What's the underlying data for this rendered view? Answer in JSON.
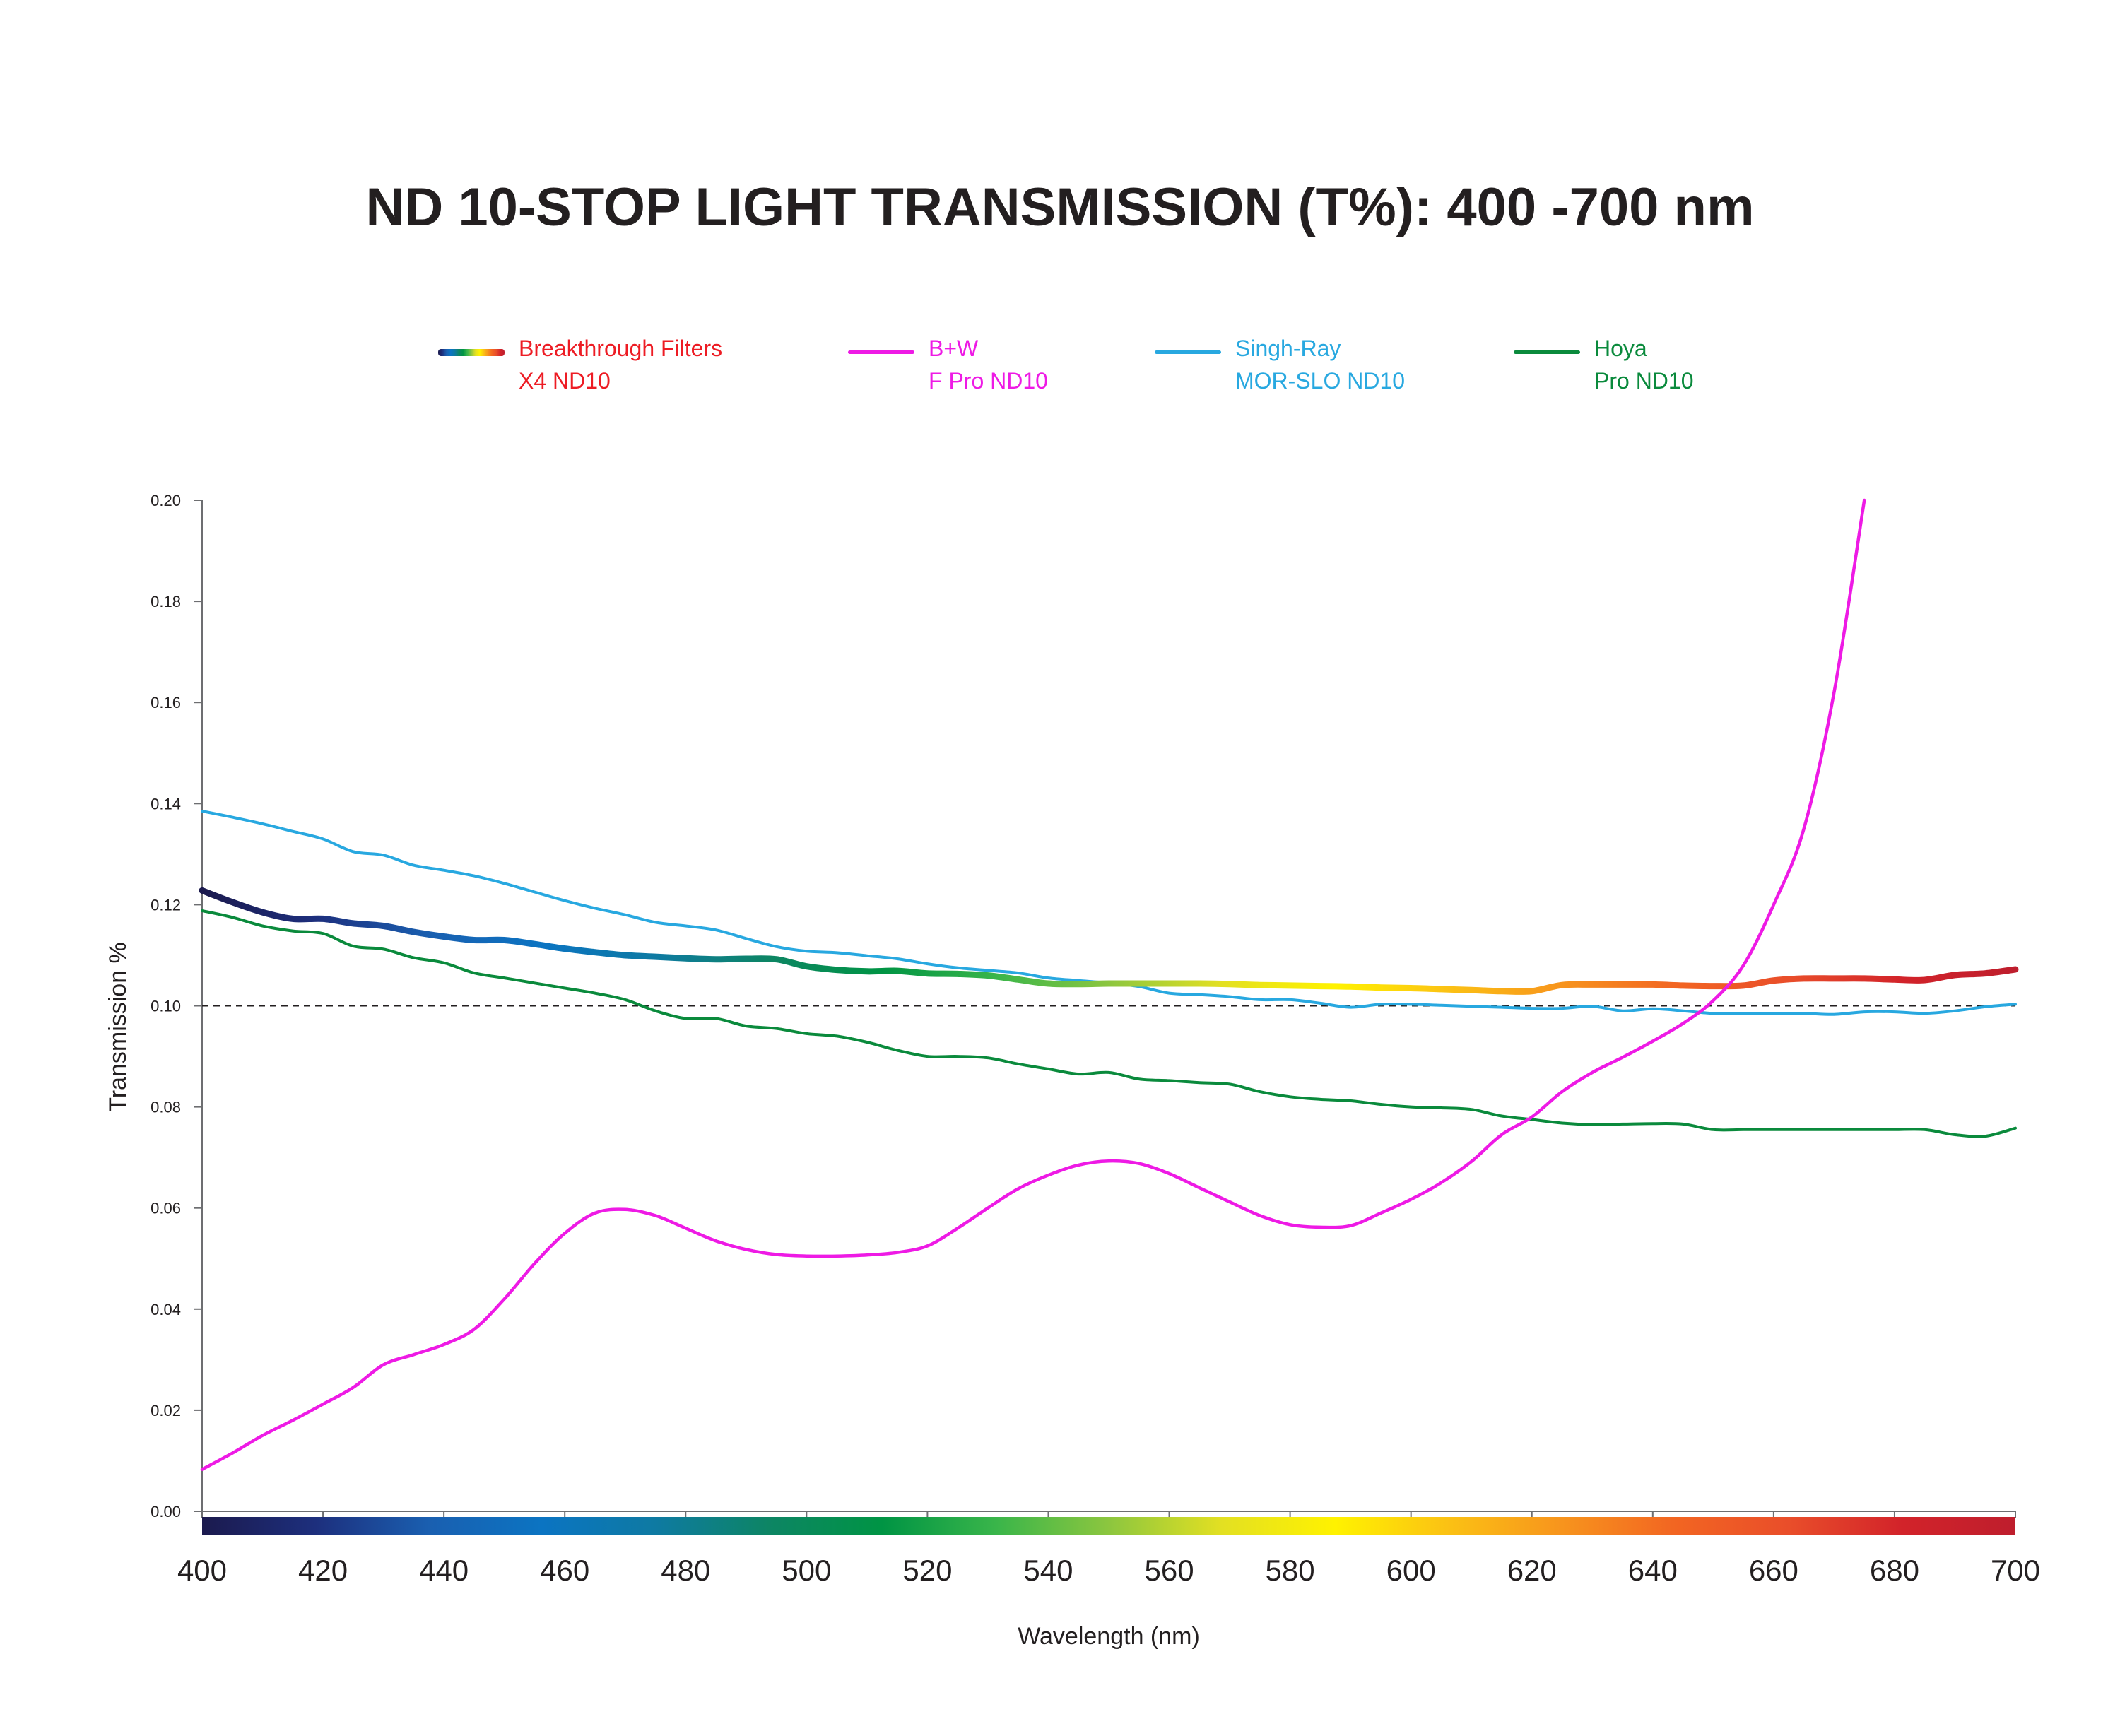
{
  "chart_data": {
    "type": "line",
    "title": "ND 10-STOP LIGHT TRANSMISSION (T%): 400 -700 nm",
    "xlabel": "Wavelength (nm)",
    "ylabel": "Transmission %",
    "xlim": [
      400,
      700
    ],
    "ylim": [
      0,
      0.2
    ],
    "x_ticks": [
      400,
      420,
      440,
      460,
      480,
      500,
      520,
      540,
      560,
      580,
      600,
      620,
      640,
      660,
      680,
      700
    ],
    "y_ticks": [
      "0.00",
      "0.02",
      "0.04",
      "0.06",
      "0.08",
      "0.10",
      "0.12",
      "0.14",
      "0.16",
      "0.18",
      "0.20"
    ],
    "reference_line": 0.1,
    "grid": false,
    "legend_position": "top",
    "series": [
      {
        "name": "Breakthrough Filters",
        "name_line2": "X4 ND10",
        "color": "#ed1c24",
        "line_style": "spectrum-gradient",
        "x": [
          400,
          405,
          410,
          415,
          420,
          425,
          430,
          435,
          440,
          445,
          450,
          455,
          460,
          465,
          470,
          475,
          480,
          485,
          490,
          495,
          500,
          505,
          510,
          515,
          520,
          525,
          530,
          535,
          540,
          545,
          550,
          555,
          560,
          565,
          570,
          575,
          580,
          585,
          590,
          595,
          600,
          605,
          610,
          615,
          620,
          625,
          630,
          635,
          640,
          645,
          650,
          655,
          660,
          665,
          670,
          675,
          680,
          685,
          690,
          695,
          700
        ],
        "y": [
          0.1228,
          0.1205,
          0.1185,
          0.1172,
          0.1172,
          0.1163,
          0.1158,
          0.1146,
          0.1137,
          0.113,
          0.113,
          0.1122,
          0.1113,
          0.1106,
          0.11,
          0.1097,
          0.1094,
          0.1092,
          0.1093,
          0.1092,
          0.1078,
          0.1071,
          0.1068,
          0.1069,
          0.1064,
          0.1063,
          0.106,
          0.1052,
          0.1044,
          0.1043,
          0.1044,
          0.1044,
          0.1044,
          0.1044,
          0.1043,
          0.1041,
          0.104,
          0.1039,
          0.1038,
          0.1036,
          0.1035,
          0.1033,
          0.1031,
          0.1029,
          0.1029,
          0.1041,
          0.1042,
          0.1042,
          0.1042,
          0.104,
          0.1039,
          0.104,
          0.105,
          0.1054,
          0.1054,
          0.1054,
          0.1052,
          0.1051,
          0.1061,
          0.1064,
          0.1072
        ]
      },
      {
        "name": "B+W",
        "name_line2": "F Pro ND10",
        "color": "#ee1ae5",
        "x": [
          400,
          405,
          410,
          415,
          420,
          425,
          430,
          435,
          440,
          445,
          450,
          455,
          460,
          465,
          470,
          475,
          480,
          485,
          490,
          495,
          500,
          505,
          510,
          515,
          520,
          525,
          530,
          535,
          540,
          545,
          550,
          555,
          560,
          565,
          570,
          575,
          580,
          585,
          590,
          595,
          600,
          605,
          610,
          615,
          620,
          625,
          630,
          635,
          640,
          645,
          650,
          655,
          660,
          665,
          670,
          675
        ],
        "y": [
          0.0083,
          0.0115,
          0.015,
          0.018,
          0.0212,
          0.0245,
          0.029,
          0.031,
          0.033,
          0.036,
          0.042,
          0.049,
          0.055,
          0.059,
          0.0597,
          0.0585,
          0.056,
          0.0535,
          0.0518,
          0.0508,
          0.0505,
          0.0505,
          0.0507,
          0.0512,
          0.0525,
          0.056,
          0.06,
          0.0638,
          0.0665,
          0.0685,
          0.0693,
          0.0688,
          0.0668,
          0.064,
          0.0612,
          0.0585,
          0.0567,
          0.0562,
          0.0565,
          0.059,
          0.0617,
          0.065,
          0.0692,
          0.0745,
          0.078,
          0.083,
          0.0868,
          0.0898,
          0.093,
          0.0965,
          0.101,
          0.108,
          0.12,
          0.135,
          0.162,
          0.2
        ]
      },
      {
        "name": "Singh-Ray",
        "name_line2": "MOR-SLO ND10",
        "color": "#28a8e0",
        "x": [
          400,
          405,
          410,
          415,
          420,
          425,
          430,
          435,
          440,
          445,
          450,
          455,
          460,
          465,
          470,
          475,
          480,
          485,
          490,
          495,
          500,
          505,
          510,
          515,
          520,
          525,
          530,
          535,
          540,
          545,
          550,
          555,
          560,
          565,
          570,
          575,
          580,
          585,
          590,
          595,
          600,
          605,
          610,
          615,
          620,
          625,
          630,
          635,
          640,
          645,
          650,
          655,
          660,
          665,
          670,
          675,
          680,
          685,
          690,
          695,
          700
        ],
        "y": [
          0.1385,
          0.1373,
          0.136,
          0.1345,
          0.133,
          0.1305,
          0.1298,
          0.1278,
          0.1268,
          0.1257,
          0.1242,
          0.1225,
          0.1208,
          0.1193,
          0.118,
          0.1165,
          0.1158,
          0.115,
          0.1133,
          0.1117,
          0.1108,
          0.1105,
          0.1099,
          0.1093,
          0.1083,
          0.1075,
          0.107,
          0.1065,
          0.1055,
          0.105,
          0.1045,
          0.1038,
          0.1025,
          0.1022,
          0.1018,
          0.1012,
          0.1012,
          0.1005,
          0.0997,
          0.1003,
          0.1003,
          0.1001,
          0.0999,
          0.0997,
          0.0995,
          0.0995,
          0.0999,
          0.099,
          0.0994,
          0.099,
          0.0985,
          0.0985,
          0.0985,
          0.0985,
          0.0983,
          0.0988,
          0.0988,
          0.0985,
          0.099,
          0.0998,
          0.1003
        ]
      },
      {
        "name": "Hoya",
        "name_line2": "Pro ND10",
        "color": "#0a8a3c",
        "x": [
          400,
          405,
          410,
          415,
          420,
          425,
          430,
          435,
          440,
          445,
          450,
          455,
          460,
          465,
          470,
          475,
          480,
          485,
          490,
          495,
          500,
          505,
          510,
          515,
          520,
          525,
          530,
          535,
          540,
          545,
          550,
          555,
          560,
          565,
          570,
          575,
          580,
          585,
          590,
          595,
          600,
          605,
          610,
          615,
          620,
          625,
          630,
          635,
          640,
          645,
          650,
          655,
          660,
          665,
          670,
          675,
          680,
          685,
          690,
          695,
          700
        ],
        "y": [
          0.1188,
          0.1175,
          0.1158,
          0.1148,
          0.1143,
          0.1118,
          0.1112,
          0.1095,
          0.1085,
          0.1065,
          0.1055,
          0.1045,
          0.1035,
          0.1025,
          0.1012,
          0.099,
          0.0975,
          0.0975,
          0.096,
          0.0955,
          0.0945,
          0.094,
          0.0928,
          0.0912,
          0.09,
          0.09,
          0.0897,
          0.0885,
          0.0875,
          0.0865,
          0.0868,
          0.0855,
          0.0852,
          0.0848,
          0.0845,
          0.083,
          0.082,
          0.0815,
          0.0812,
          0.0805,
          0.08,
          0.0798,
          0.0795,
          0.0782,
          0.0775,
          0.0768,
          0.0765,
          0.0766,
          0.0767,
          0.0766,
          0.0755,
          0.0755,
          0.0755,
          0.0755,
          0.0755,
          0.0755,
          0.0755,
          0.0755,
          0.0745,
          0.0742,
          0.0758
        ]
      }
    ],
    "color_bar": {
      "stops": [
        "#1b1a4e",
        "#1d2f7d",
        "#1a5fb0",
        "#0b74c2",
        "#0e7aa2",
        "#0d8564",
        "#009444",
        "#39b54a",
        "#8cc63f",
        "#e3e022",
        "#fff200",
        "#fbc114",
        "#f7941d",
        "#f26522",
        "#e94e2a",
        "#d2232a",
        "#be1e2d"
      ]
    }
  }
}
